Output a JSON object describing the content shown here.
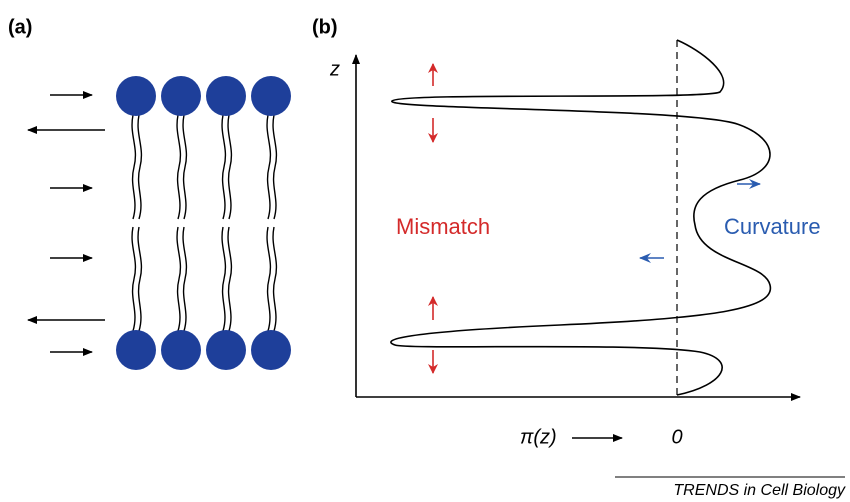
{
  "panels": {
    "a": {
      "label": "(a)"
    },
    "b": {
      "label": "(b)",
      "axis_label": "z",
      "mismatch": "Mismatch",
      "curvature": "Curvature",
      "x_label": "π(z)",
      "zero": "0"
    }
  },
  "footer": "TRENDS in Cell Biology"
}
